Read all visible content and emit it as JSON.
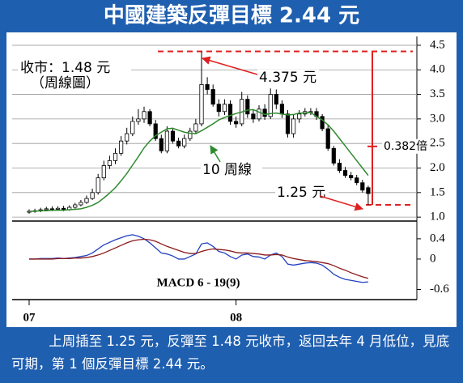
{
  "title": "中國建築反彈目標 2.44 元",
  "caption": "上周插至 1.25 元，反彈至 1.48 元收市，返回去年 4 月低位，見底可期，第 1 個反彈目標 2.44 元。",
  "chart_data": [
    {
      "type": "candlestick",
      "ylim": [
        0.92,
        4.68
      ],
      "yticks": [
        {
          "value": 1,
          "label": "1.0"
        },
        1.5,
        {
          "value": 2,
          "label": "2.0"
        },
        2.5,
        {
          "value": 3,
          "label": "3.0"
        },
        3.5,
        {
          "value": 4,
          "label": "4.0"
        },
        4.5
      ],
      "grid": true,
      "up_color": "#ffffff",
      "down_color": "#000000",
      "series": [
        {
          "open": [
            1.1,
            1.12,
            1.13,
            1.15,
            1.17,
            1.16,
            1.18,
            1.15,
            1.2,
            1.25,
            1.3,
            1.38,
            1.5,
            1.8,
            2.05,
            2.15,
            2.3,
            2.55,
            2.7,
            2.95,
            3.0,
            3.15,
            2.9,
            2.6,
            2.35,
            2.75,
            2.55,
            2.45,
            2.6,
            2.75,
            2.9,
            3.7,
            3.6,
            3.3,
            3.15,
            3.3,
            2.95,
            2.9,
            3.4,
            3.1,
            3.0,
            3.2,
            3.05,
            3.5,
            3.3,
            3.1,
            2.7,
            3.0,
            3.1,
            3.15,
            3.15,
            3.05,
            2.8,
            2.4,
            2.1,
            1.95,
            1.85,
            1.8,
            1.7,
            1.6
          ],
          "high": [
            1.16,
            1.17,
            1.19,
            1.21,
            1.22,
            1.22,
            1.23,
            1.24,
            1.29,
            1.35,
            1.44,
            1.58,
            1.88,
            2.15,
            2.25,
            2.4,
            2.65,
            2.82,
            3.05,
            3.2,
            3.25,
            3.2,
            2.98,
            2.68,
            2.85,
            2.82,
            2.62,
            2.68,
            2.82,
            3.0,
            4.375,
            3.85,
            3.7,
            3.4,
            3.4,
            3.38,
            3.05,
            3.55,
            3.48,
            3.18,
            3.28,
            3.3,
            3.62,
            3.6,
            3.38,
            3.18,
            3.08,
            3.18,
            3.22,
            3.22,
            3.22,
            3.1,
            2.88,
            2.45,
            2.18,
            2.02,
            1.92,
            1.86,
            1.76,
            1.64
          ],
          "low": [
            1.07,
            1.09,
            1.1,
            1.12,
            1.12,
            1.13,
            1.12,
            1.13,
            1.17,
            1.22,
            1.27,
            1.35,
            1.46,
            1.75,
            1.98,
            2.08,
            2.25,
            2.48,
            2.65,
            2.88,
            2.92,
            2.85,
            2.55,
            2.3,
            2.3,
            2.5,
            2.4,
            2.4,
            2.55,
            2.7,
            2.85,
            3.5,
            3.25,
            3.05,
            3.08,
            2.88,
            2.82,
            2.85,
            3.02,
            2.92,
            2.95,
            2.98,
            3.0,
            3.2,
            3.02,
            2.62,
            2.62,
            2.92,
            3.05,
            3.08,
            2.98,
            2.75,
            2.35,
            2.05,
            1.9,
            1.8,
            1.75,
            1.65,
            1.5,
            1.25
          ],
          "close": [
            1.12,
            1.13,
            1.15,
            1.17,
            1.16,
            1.18,
            1.15,
            1.2,
            1.25,
            1.3,
            1.38,
            1.5,
            1.8,
            2.05,
            2.15,
            2.3,
            2.55,
            2.7,
            2.95,
            3.0,
            3.15,
            2.9,
            2.6,
            2.35,
            2.75,
            2.55,
            2.45,
            2.6,
            2.75,
            2.9,
            3.7,
            3.6,
            3.3,
            3.15,
            3.3,
            2.95,
            2.9,
            3.4,
            3.1,
            3.0,
            3.2,
            3.05,
            3.5,
            3.3,
            3.1,
            2.7,
            3.0,
            3.1,
            3.15,
            3.15,
            3.05,
            2.8,
            2.4,
            2.1,
            1.95,
            1.85,
            1.8,
            1.7,
            1.55,
            1.48
          ]
        },
        {
          "color": "#2e8b2e",
          "values": [
            1.12,
            1.12,
            1.13,
            1.13,
            1.14,
            1.14,
            1.14,
            1.15,
            1.16,
            1.17,
            1.2,
            1.24,
            1.3,
            1.39,
            1.49,
            1.6,
            1.74,
            1.89,
            2.06,
            2.23,
            2.41,
            2.55,
            2.66,
            2.73,
            2.8,
            2.81,
            2.77,
            2.73,
            2.71,
            2.7,
            2.76,
            2.83,
            2.9,
            2.98,
            3.03,
            3.07,
            3.11,
            3.14,
            3.18,
            3.19,
            3.14,
            3.09,
            3.11,
            3.12,
            3.1,
            3.08,
            3.09,
            3.12,
            3.12,
            3.13,
            3.05,
            2.98,
            2.88,
            2.75,
            2.6,
            2.45,
            2.3,
            2.15,
            2.0,
            1.85
          ]
        }
      ],
      "annotations": [
        "收市：1.48 元",
        "（周線圖）",
        "10 周線"
      ],
      "reference_lines": [
        {
          "value": 4.375,
          "label": "4.375 元"
        },
        {
          "value": 1.25,
          "label": "1.25 元"
        }
      ],
      "retracement": {
        "value": 2.44,
        "label": "0.382倍"
      }
    },
    {
      "type": "line",
      "annotation": "MACD 6 - 19(9)",
      "categories": [
        "07",
        null,
        null,
        null,
        null,
        null,
        null,
        null,
        null,
        null,
        null,
        null,
        null,
        null,
        null,
        null,
        null,
        null,
        null,
        null,
        null,
        null,
        null,
        null,
        null,
        null,
        null,
        null,
        null,
        null,
        null,
        null,
        null,
        null,
        null,
        null,
        "08",
        null,
        null,
        null,
        null,
        null,
        null,
        null,
        null,
        null,
        null,
        null,
        null,
        null,
        null,
        null,
        null,
        null,
        null,
        null,
        null,
        null,
        null,
        null
      ],
      "ylim": [
        -0.8,
        0.75
      ],
      "yticks": [
        0.4,
        0,
        -0.6
      ],
      "series": [
        {
          "color": "#2040c0",
          "values": [
            0,
            0,
            0.01,
            0.01,
            0.01,
            0.02,
            0.01,
            0.02,
            0.03,
            0.05,
            0.07,
            0.12,
            0.2,
            0.28,
            0.33,
            0.38,
            0.42,
            0.46,
            0.48,
            0.45,
            0.4,
            0.32,
            0.22,
            0.12,
            0.1,
            0.06,
            0.0,
            0.0,
            0.05,
            0.1,
            0.3,
            0.32,
            0.25,
            0.15,
            0.12,
            0.05,
            0.0,
            0.08,
            0.1,
            0.05,
            0.04,
            0.0,
            0.08,
            0.12,
            0.05,
            -0.1,
            -0.12,
            -0.1,
            -0.08,
            -0.07,
            -0.08,
            -0.12,
            -0.2,
            -0.3,
            -0.36,
            -0.4,
            -0.42,
            -0.44,
            -0.46,
            -0.45
          ]
        },
        {
          "color": "#8b1a1a",
          "values": [
            0,
            0,
            0,
            0,
            0,
            0.01,
            0.01,
            0.01,
            0.02,
            0.02,
            0.03,
            0.05,
            0.08,
            0.12,
            0.17,
            0.22,
            0.27,
            0.32,
            0.36,
            0.38,
            0.39,
            0.38,
            0.35,
            0.3,
            0.25,
            0.21,
            0.17,
            0.13,
            0.11,
            0.11,
            0.15,
            0.18,
            0.2,
            0.19,
            0.18,
            0.16,
            0.13,
            0.12,
            0.12,
            0.11,
            0.1,
            0.08,
            0.08,
            0.09,
            0.08,
            0.04,
            0.01,
            -0.01,
            -0.03,
            -0.04,
            -0.05,
            -0.07,
            -0.09,
            -0.13,
            -0.18,
            -0.22,
            -0.27,
            -0.31,
            -0.35,
            -0.38
          ]
        }
      ]
    }
  ]
}
